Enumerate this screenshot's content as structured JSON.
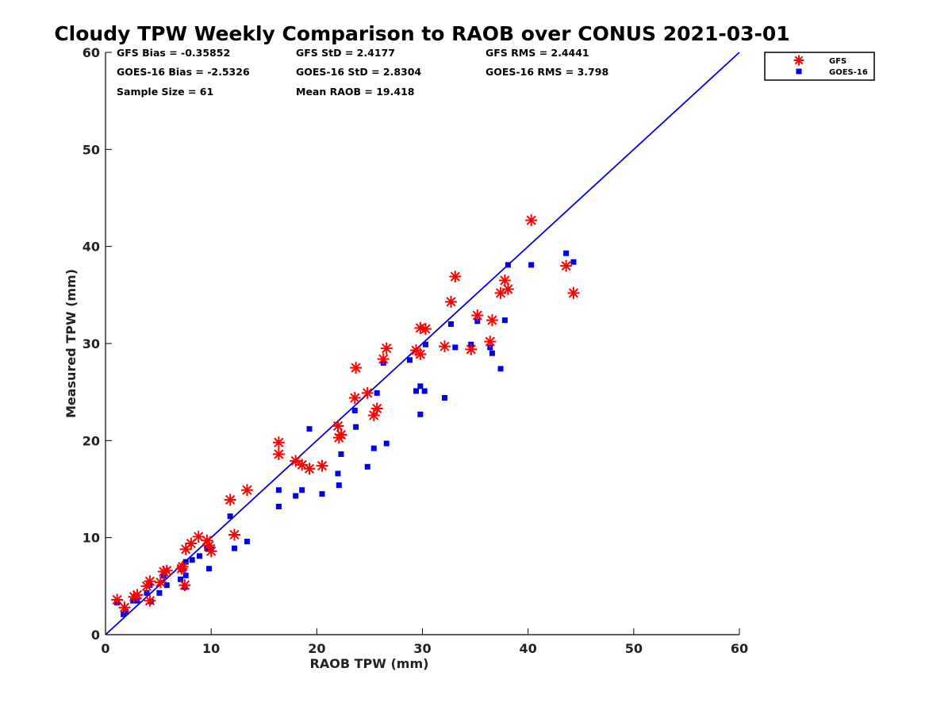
{
  "chart_data": {
    "type": "scatter",
    "title": "Cloudy TPW Weekly Comparison to RAOB over CONUS 2021-03-01",
    "xlabel": "RAOB TPW (mm)",
    "ylabel": "Measured TPW (mm)",
    "xlim": [
      0,
      60
    ],
    "ylim": [
      0,
      60
    ],
    "xticks": [
      0,
      10,
      20,
      30,
      40,
      50,
      60
    ],
    "yticks": [
      0,
      10,
      20,
      30,
      40,
      50,
      60
    ],
    "grid": false,
    "legend_position": "top-right outside",
    "reference_line": {
      "name": "1:1",
      "from": [
        0,
        0
      ],
      "to": [
        60,
        60
      ],
      "color": "#0000dd"
    },
    "stats": [
      [
        "GFS Bias = -0.35852",
        "GFS StD = 2.4177",
        "GFS RMS = 2.4441"
      ],
      [
        "GOES-16 Bias = -2.5326",
        "GOES-16 StD = 2.8304",
        "GOES-16 RMS = 3.798"
      ],
      [
        "Sample Size = 61",
        "Mean RAOB = 19.418",
        ""
      ]
    ],
    "series": [
      {
        "name": "GFS",
        "marker": "asterisk",
        "color": "#ff0000",
        "points": [
          [
            1.1,
            3.6
          ],
          [
            1.8,
            2.8
          ],
          [
            2.7,
            3.9
          ],
          [
            3.0,
            4.1
          ],
          [
            3.9,
            5.0
          ],
          [
            4.2,
            5.5
          ],
          [
            4.2,
            3.5
          ],
          [
            5.2,
            5.4
          ],
          [
            5.5,
            6.5
          ],
          [
            5.8,
            6.6
          ],
          [
            7.2,
            6.8
          ],
          [
            7.3,
            7.0
          ],
          [
            7.5,
            5.1
          ],
          [
            7.6,
            8.8
          ],
          [
            8.1,
            9.4
          ],
          [
            8.8,
            10.1
          ],
          [
            9.6,
            9.7
          ],
          [
            9.8,
            9.2
          ],
          [
            10.0,
            8.6
          ],
          [
            11.8,
            13.9
          ],
          [
            12.2,
            10.3
          ],
          [
            13.4,
            14.9
          ],
          [
            16.4,
            19.8
          ],
          [
            16.4,
            18.6
          ],
          [
            18.0,
            17.9
          ],
          [
            18.6,
            17.5
          ],
          [
            19.3,
            17.1
          ],
          [
            20.5,
            17.4
          ],
          [
            22.0,
            21.5
          ],
          [
            22.1,
            20.3
          ],
          [
            22.3,
            20.6
          ],
          [
            23.6,
            24.4
          ],
          [
            23.7,
            27.5
          ],
          [
            24.8,
            24.9
          ],
          [
            25.4,
            22.6
          ],
          [
            25.7,
            23.3
          ],
          [
            26.3,
            28.4
          ],
          [
            26.6,
            29.5
          ],
          [
            29.4,
            29.3
          ],
          [
            29.8,
            28.9
          ],
          [
            29.8,
            31.6
          ],
          [
            30.3,
            31.5
          ],
          [
            32.1,
            29.7
          ],
          [
            32.7,
            34.3
          ],
          [
            33.1,
            36.9
          ],
          [
            34.6,
            29.4
          ],
          [
            35.2,
            32.9
          ],
          [
            36.4,
            30.2
          ],
          [
            36.6,
            32.4
          ],
          [
            37.4,
            35.2
          ],
          [
            37.8,
            36.5
          ],
          [
            38.1,
            35.6
          ],
          [
            40.3,
            42.7
          ],
          [
            43.6,
            38.0
          ],
          [
            44.3,
            35.2
          ]
        ]
      },
      {
        "name": "GOES-16",
        "marker": "square",
        "color": "#0000ee",
        "points": [
          [
            1.1,
            3.3
          ],
          [
            1.7,
            2.1
          ],
          [
            1.9,
            2.4
          ],
          [
            2.6,
            3.5
          ],
          [
            3.0,
            3.5
          ],
          [
            3.9,
            4.3
          ],
          [
            4.2,
            5.1
          ],
          [
            4.3,
            3.4
          ],
          [
            5.1,
            4.3
          ],
          [
            5.5,
            6.1
          ],
          [
            5.8,
            5.1
          ],
          [
            7.1,
            5.7
          ],
          [
            7.3,
            6.7
          ],
          [
            7.5,
            4.9
          ],
          [
            7.6,
            7.5
          ],
          [
            7.6,
            6.1
          ],
          [
            8.2,
            7.7
          ],
          [
            8.9,
            8.1
          ],
          [
            9.6,
            8.9
          ],
          [
            9.8,
            6.8
          ],
          [
            10.0,
            8.8
          ],
          [
            11.8,
            12.2
          ],
          [
            12.2,
            8.9
          ],
          [
            13.4,
            9.6
          ],
          [
            16.4,
            14.9
          ],
          [
            16.4,
            13.2
          ],
          [
            18.0,
            14.3
          ],
          [
            18.6,
            14.9
          ],
          [
            19.3,
            21.2
          ],
          [
            20.5,
            14.5
          ],
          [
            22.0,
            16.6
          ],
          [
            22.1,
            15.4
          ],
          [
            22.3,
            18.6
          ],
          [
            23.6,
            23.1
          ],
          [
            23.7,
            21.4
          ],
          [
            24.8,
            17.3
          ],
          [
            25.4,
            19.2
          ],
          [
            25.7,
            24.9
          ],
          [
            26.3,
            28.0
          ],
          [
            26.6,
            19.7
          ],
          [
            28.8,
            28.3
          ],
          [
            29.4,
            25.1
          ],
          [
            29.8,
            25.6
          ],
          [
            29.8,
            22.7
          ],
          [
            30.2,
            25.1
          ],
          [
            30.3,
            29.9
          ],
          [
            32.1,
            24.4
          ],
          [
            32.7,
            32.0
          ],
          [
            33.1,
            29.6
          ],
          [
            34.6,
            29.9
          ],
          [
            35.2,
            32.3
          ],
          [
            36.4,
            29.6
          ],
          [
            36.6,
            29.0
          ],
          [
            37.4,
            27.4
          ],
          [
            37.8,
            32.4
          ],
          [
            38.1,
            38.1
          ],
          [
            40.3,
            38.1
          ],
          [
            43.6,
            39.3
          ],
          [
            44.3,
            38.4
          ]
        ]
      }
    ]
  }
}
